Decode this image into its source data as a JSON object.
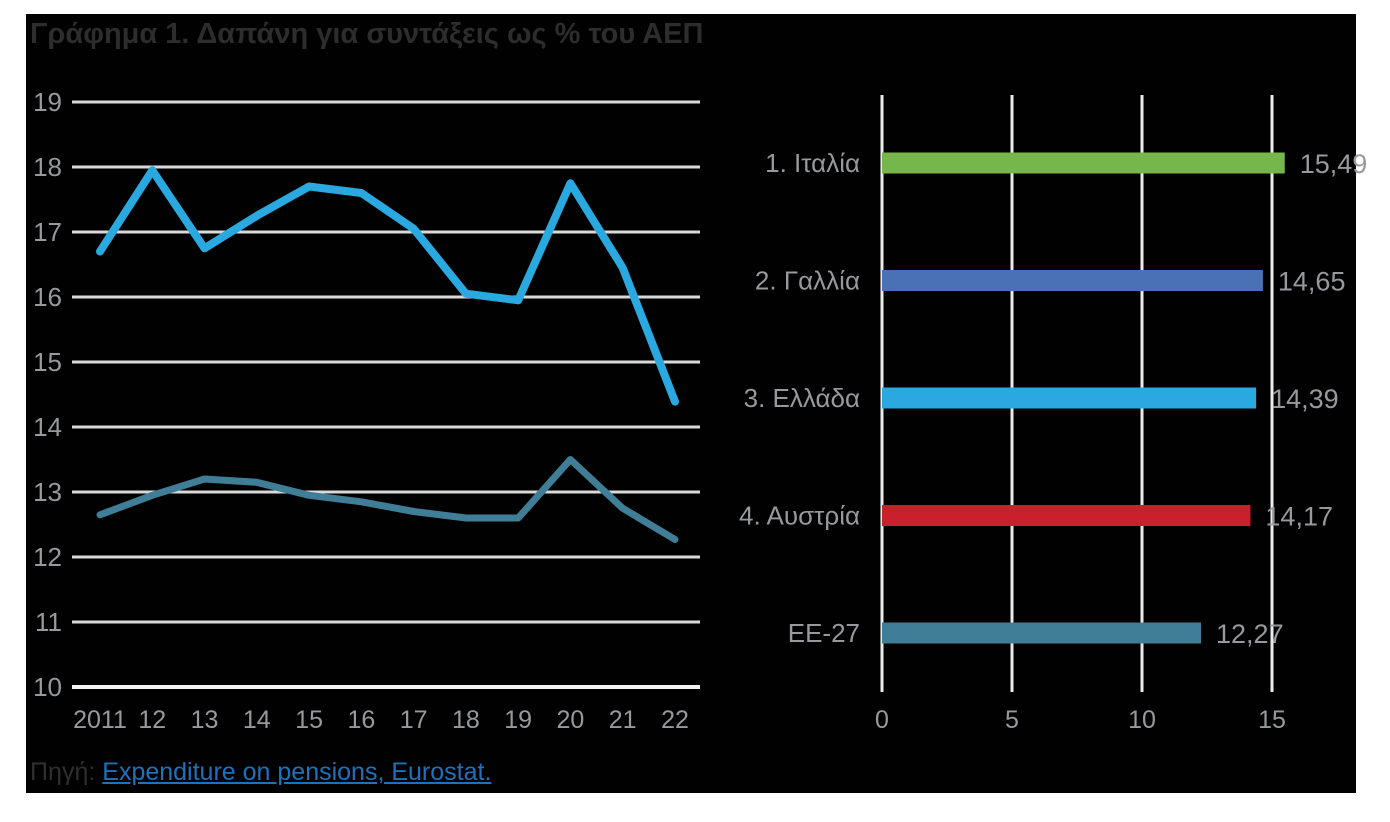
{
  "page": {
    "title": "Γράφημα 1. Δαπάνη για συντάξεις ως % του ΑΕΠ",
    "source_prefix": "Πηγή:",
    "source_link": "Expenditure on pensions, Eurostat.",
    "colors": {
      "panel_background": "#010101",
      "page_background": "#ffffff",
      "title_text": "#2d2d2d",
      "axis_label": "#97999c",
      "gridline": "#d9d9d9",
      "axis_line": "#f2f2f2",
      "bar_gridline": "#ebebeb",
      "link": "#1d71bd"
    }
  },
  "chart_data": [
    {
      "type": "line",
      "title": "Δαπάνη για συντάξεις ως % του ΑΕΠ",
      "x_tick_labels": [
        "2011",
        "12",
        "13",
        "14",
        "15",
        "16",
        "17",
        "18",
        "19",
        "20",
        "21",
        "22"
      ],
      "series": [
        {
          "name": "Ελλάδα",
          "color": "#29a9df",
          "values": [
            16.7,
            17.95,
            16.75,
            17.25,
            17.7,
            17.6,
            17.05,
            16.05,
            15.95,
            17.75,
            16.45,
            14.39
          ]
        },
        {
          "name": "ΕΕ-27",
          "color": "#3f7e96",
          "values": [
            12.65,
            12.95,
            13.2,
            13.15,
            12.95,
            12.85,
            12.7,
            12.6,
            12.6,
            13.5,
            12.75,
            12.27
          ]
        }
      ],
      "ylim": [
        10,
        19
      ],
      "yticks": [
        10,
        11,
        12,
        13,
        14,
        15,
        16,
        17,
        18,
        19
      ],
      "grid": true,
      "legend": false
    },
    {
      "type": "bar",
      "orientation": "horizontal",
      "categories": [
        "1. Ιταλία",
        "2. Γαλλία",
        "3. Ελλάδα",
        "4. Αυστρία",
        "ΕΕ-27"
      ],
      "values": [
        15.49,
        14.65,
        14.39,
        14.17,
        12.27
      ],
      "value_labels": [
        "15,49",
        "14,65",
        "14,39",
        "14,17",
        "12,27"
      ],
      "bar_colors": [
        "#76b74d",
        "#4a71b4",
        "#29a9df",
        "#c9202c",
        "#3f7e96"
      ],
      "xticks": [
        0,
        5,
        10,
        15
      ],
      "xtick_labels": [
        "0",
        "5",
        "10",
        "15"
      ],
      "xlim": [
        0,
        16
      ],
      "grid": true,
      "legend": false
    }
  ]
}
